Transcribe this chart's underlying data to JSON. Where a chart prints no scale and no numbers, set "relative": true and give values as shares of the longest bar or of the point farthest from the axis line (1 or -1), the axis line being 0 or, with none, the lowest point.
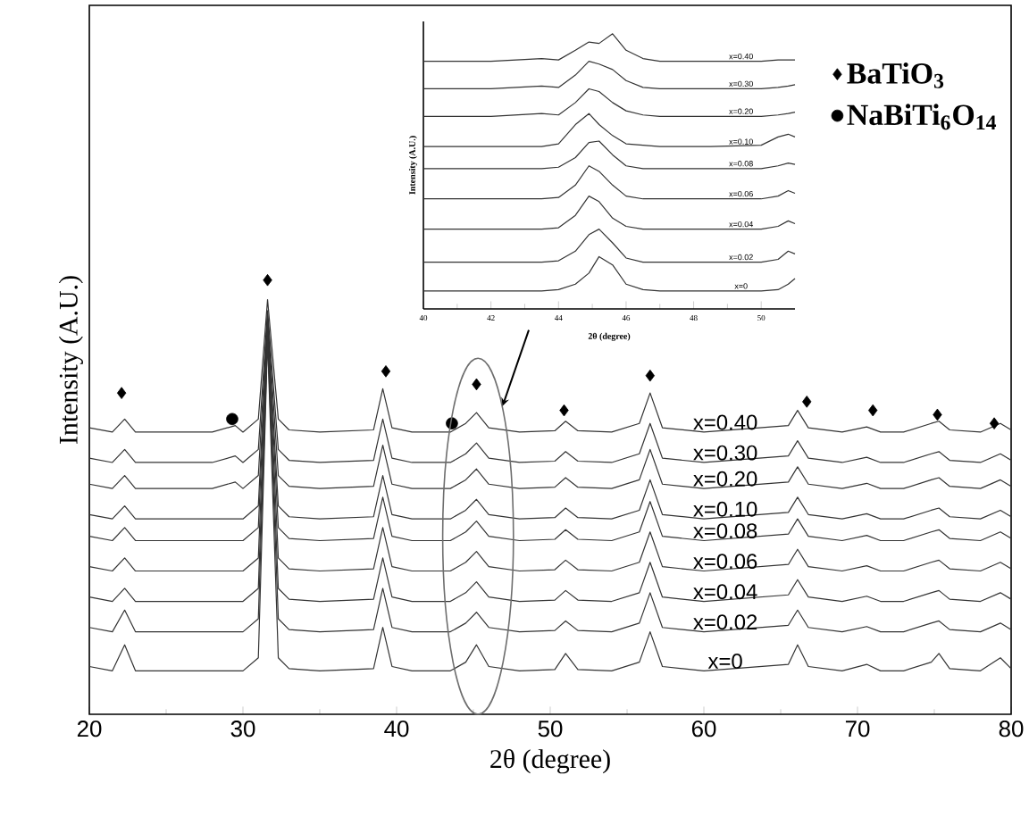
{
  "chart_data": [
    {
      "type": "line",
      "relative": true,
      "xlabel": "2θ (degree)",
      "ylabel": "Intensity (A.U.)",
      "xlim": [
        20,
        80
      ],
      "xticks": [
        20,
        30,
        40,
        50,
        60,
        70,
        80
      ],
      "legend": "top right",
      "x": [
        20,
        21.5,
        22.3,
        23,
        25,
        28,
        29.5,
        30,
        31,
        31.6,
        32.3,
        33,
        35,
        38.5,
        39.1,
        39.7,
        41,
        43.5,
        44.5,
        45.2,
        46,
        48,
        50.3,
        51,
        51.8,
        54,
        55.8,
        56.5,
        57.3,
        60,
        65.5,
        66.1,
        66.8,
        69,
        70.6,
        71.5,
        73,
        74.8,
        75.3,
        76,
        78,
        79.3,
        80
      ],
      "series": [
        {
          "name": "x=0.40",
          "color": "#333333",
          "values": [
            0.66,
            0.65,
            0.68,
            0.65,
            0.65,
            0.65,
            0.665,
            0.65,
            0.68,
            0.955,
            0.68,
            0.655,
            0.65,
            0.655,
            0.75,
            0.66,
            0.65,
            0.65,
            0.67,
            0.695,
            0.66,
            0.65,
            0.653,
            0.675,
            0.653,
            0.65,
            0.67,
            0.74,
            0.66,
            0.65,
            0.665,
            0.7,
            0.66,
            0.65,
            0.662,
            0.65,
            0.65,
            0.67,
            0.675,
            0.655,
            0.65,
            0.67,
            0.655
          ]
        },
        {
          "name": "x=0.30",
          "color": "#333333",
          "values": [
            0.59,
            0.58,
            0.61,
            0.58,
            0.58,
            0.58,
            0.595,
            0.58,
            0.61,
            0.93,
            0.61,
            0.585,
            0.58,
            0.585,
            0.68,
            0.59,
            0.58,
            0.58,
            0.6,
            0.625,
            0.59,
            0.58,
            0.583,
            0.605,
            0.583,
            0.58,
            0.6,
            0.67,
            0.59,
            0.58,
            0.595,
            0.63,
            0.59,
            0.58,
            0.592,
            0.58,
            0.58,
            0.6,
            0.605,
            0.585,
            0.58,
            0.6,
            0.585
          ]
        },
        {
          "name": "x=0.20",
          "color": "#333333",
          "values": [
            0.53,
            0.52,
            0.55,
            0.52,
            0.52,
            0.52,
            0.535,
            0.52,
            0.55,
            0.92,
            0.55,
            0.525,
            0.52,
            0.525,
            0.62,
            0.53,
            0.52,
            0.52,
            0.54,
            0.565,
            0.53,
            0.52,
            0.523,
            0.545,
            0.523,
            0.52,
            0.54,
            0.61,
            0.53,
            0.52,
            0.535,
            0.57,
            0.53,
            0.52,
            0.532,
            0.52,
            0.52,
            0.54,
            0.545,
            0.525,
            0.52,
            0.54,
            0.525
          ]
        },
        {
          "name": "x=0.10",
          "color": "#333333",
          "values": [
            0.46,
            0.45,
            0.48,
            0.45,
            0.45,
            0.45,
            0.45,
            0.45,
            0.48,
            0.91,
            0.48,
            0.455,
            0.45,
            0.455,
            0.55,
            0.46,
            0.45,
            0.45,
            0.47,
            0.495,
            0.46,
            0.45,
            0.453,
            0.475,
            0.453,
            0.45,
            0.47,
            0.54,
            0.46,
            0.45,
            0.465,
            0.5,
            0.46,
            0.45,
            0.462,
            0.45,
            0.45,
            0.47,
            0.475,
            0.455,
            0.45,
            0.47,
            0.455
          ]
        },
        {
          "name": "x=0.08",
          "color": "#333333",
          "values": [
            0.41,
            0.4,
            0.43,
            0.4,
            0.4,
            0.4,
            0.4,
            0.4,
            0.43,
            0.9,
            0.43,
            0.405,
            0.4,
            0.405,
            0.5,
            0.41,
            0.4,
            0.4,
            0.42,
            0.445,
            0.41,
            0.4,
            0.403,
            0.425,
            0.403,
            0.4,
            0.42,
            0.49,
            0.41,
            0.4,
            0.415,
            0.45,
            0.41,
            0.4,
            0.412,
            0.4,
            0.4,
            0.42,
            0.425,
            0.405,
            0.4,
            0.42,
            0.405
          ]
        },
        {
          "name": "x=0.06",
          "color": "#333333",
          "values": [
            0.34,
            0.33,
            0.36,
            0.33,
            0.33,
            0.33,
            0.33,
            0.33,
            0.36,
            0.89,
            0.36,
            0.335,
            0.33,
            0.335,
            0.43,
            0.34,
            0.33,
            0.33,
            0.35,
            0.375,
            0.34,
            0.33,
            0.333,
            0.355,
            0.333,
            0.33,
            0.35,
            0.42,
            0.34,
            0.33,
            0.345,
            0.38,
            0.34,
            0.33,
            0.342,
            0.33,
            0.33,
            0.35,
            0.355,
            0.335,
            0.33,
            0.35,
            0.335
          ]
        },
        {
          "name": "x=0.04",
          "color": "#333333",
          "values": [
            0.27,
            0.26,
            0.29,
            0.26,
            0.26,
            0.26,
            0.26,
            0.26,
            0.29,
            0.88,
            0.29,
            0.265,
            0.26,
            0.265,
            0.36,
            0.27,
            0.26,
            0.26,
            0.28,
            0.305,
            0.27,
            0.26,
            0.263,
            0.285,
            0.263,
            0.26,
            0.28,
            0.35,
            0.27,
            0.26,
            0.275,
            0.31,
            0.27,
            0.26,
            0.272,
            0.26,
            0.26,
            0.28,
            0.285,
            0.265,
            0.26,
            0.28,
            0.265
          ]
        },
        {
          "name": "x=0.02",
          "color": "#333333",
          "values": [
            0.2,
            0.19,
            0.24,
            0.19,
            0.19,
            0.19,
            0.19,
            0.19,
            0.22,
            0.87,
            0.22,
            0.195,
            0.19,
            0.195,
            0.29,
            0.2,
            0.19,
            0.19,
            0.21,
            0.235,
            0.2,
            0.19,
            0.193,
            0.215,
            0.193,
            0.19,
            0.21,
            0.28,
            0.2,
            0.19,
            0.205,
            0.24,
            0.2,
            0.19,
            0.202,
            0.19,
            0.19,
            0.21,
            0.215,
            0.195,
            0.19,
            0.21,
            0.195
          ]
        },
        {
          "name": "x=0",
          "color": "#333333",
          "values": [
            0.11,
            0.1,
            0.16,
            0.1,
            0.1,
            0.1,
            0.1,
            0.1,
            0.13,
            0.86,
            0.13,
            0.105,
            0.1,
            0.105,
            0.2,
            0.11,
            0.1,
            0.1,
            0.12,
            0.16,
            0.11,
            0.1,
            0.103,
            0.14,
            0.103,
            0.1,
            0.12,
            0.19,
            0.11,
            0.1,
            0.115,
            0.16,
            0.11,
            0.1,
            0.115,
            0.1,
            0.1,
            0.12,
            0.14,
            0.105,
            0.1,
            0.13,
            0.105
          ]
        },
        {
          "name": "BaTiO$_{3}$",
          "type": "scatter",
          "marker": "diamond",
          "color": "#000000",
          "x": [
            22.1,
            31.6,
            39.3,
            45.2,
            50.9,
            56.5,
            66.7,
            71.0,
            75.2,
            78.9
          ],
          "values": [
            0.74,
            1.0,
            0.79,
            0.76,
            0.7,
            0.78,
            0.72,
            0.7,
            0.69,
            0.67
          ]
        },
        {
          "name": "NaBiTi$_{6}$O$_{14}$",
          "type": "scatter",
          "marker": "circle",
          "color": "#000000",
          "x": [
            29.3,
            43.6
          ],
          "values": [
            0.68,
            0.67
          ]
        }
      ]
    },
    {
      "type": "line",
      "relative": true,
      "xlabel": "2θ (degree)",
      "ylabel": "Intensity (A.U.)",
      "xlim": [
        40,
        51
      ],
      "xticks": [
        40,
        42,
        44,
        46,
        48,
        50
      ],
      "x": [
        40,
        42,
        43.5,
        44,
        44.5,
        44.9,
        45.2,
        45.6,
        46,
        46.5,
        47,
        48.5,
        50,
        50.5,
        50.8,
        51
      ],
      "series": [
        {
          "name": "x=0.40",
          "color": "#333333",
          "values": [
            0.9,
            0.9,
            0.91,
            0.905,
            0.94,
            0.97,
            0.965,
            1.0,
            0.94,
            0.91,
            0.9,
            0.9,
            0.9,
            0.905,
            0.905,
            0.905
          ]
        },
        {
          "name": "x=0.30",
          "color": "#333333",
          "values": [
            0.8,
            0.8,
            0.81,
            0.805,
            0.85,
            0.9,
            0.89,
            0.87,
            0.83,
            0.805,
            0.8,
            0.8,
            0.8,
            0.805,
            0.81,
            0.815
          ]
        },
        {
          "name": "x=0.20",
          "color": "#333333",
          "values": [
            0.7,
            0.7,
            0.71,
            0.705,
            0.75,
            0.8,
            0.79,
            0.75,
            0.72,
            0.705,
            0.7,
            0.7,
            0.7,
            0.705,
            0.71,
            0.715
          ]
        },
        {
          "name": "x=0.10",
          "color": "#333333",
          "values": [
            0.59,
            0.59,
            0.59,
            0.6,
            0.67,
            0.71,
            0.67,
            0.63,
            0.6,
            0.595,
            0.59,
            0.59,
            0.595,
            0.625,
            0.635,
            0.625
          ]
        },
        {
          "name": "x=0.08",
          "color": "#333333",
          "values": [
            0.51,
            0.51,
            0.51,
            0.515,
            0.55,
            0.605,
            0.61,
            0.56,
            0.52,
            0.51,
            0.51,
            0.51,
            0.51,
            0.52,
            0.53,
            0.525
          ]
        },
        {
          "name": "x=0.06",
          "color": "#333333",
          "values": [
            0.4,
            0.4,
            0.4,
            0.405,
            0.45,
            0.52,
            0.5,
            0.45,
            0.41,
            0.4,
            0.4,
            0.4,
            0.4,
            0.41,
            0.43,
            0.42
          ]
        },
        {
          "name": "x=0.04",
          "color": "#333333",
          "values": [
            0.29,
            0.29,
            0.29,
            0.295,
            0.34,
            0.41,
            0.39,
            0.33,
            0.3,
            0.29,
            0.29,
            0.29,
            0.29,
            0.3,
            0.32,
            0.31
          ]
        },
        {
          "name": "x=0.02",
          "color": "#333333",
          "values": [
            0.17,
            0.17,
            0.17,
            0.175,
            0.21,
            0.27,
            0.29,
            0.24,
            0.185,
            0.17,
            0.17,
            0.17,
            0.17,
            0.18,
            0.21,
            0.2
          ]
        },
        {
          "name": "x=0",
          "color": "#333333",
          "values": [
            0.065,
            0.065,
            0.065,
            0.07,
            0.09,
            0.13,
            0.19,
            0.16,
            0.09,
            0.07,
            0.065,
            0.065,
            0.065,
            0.07,
            0.09,
            0.11
          ]
        }
      ]
    }
  ]
}
